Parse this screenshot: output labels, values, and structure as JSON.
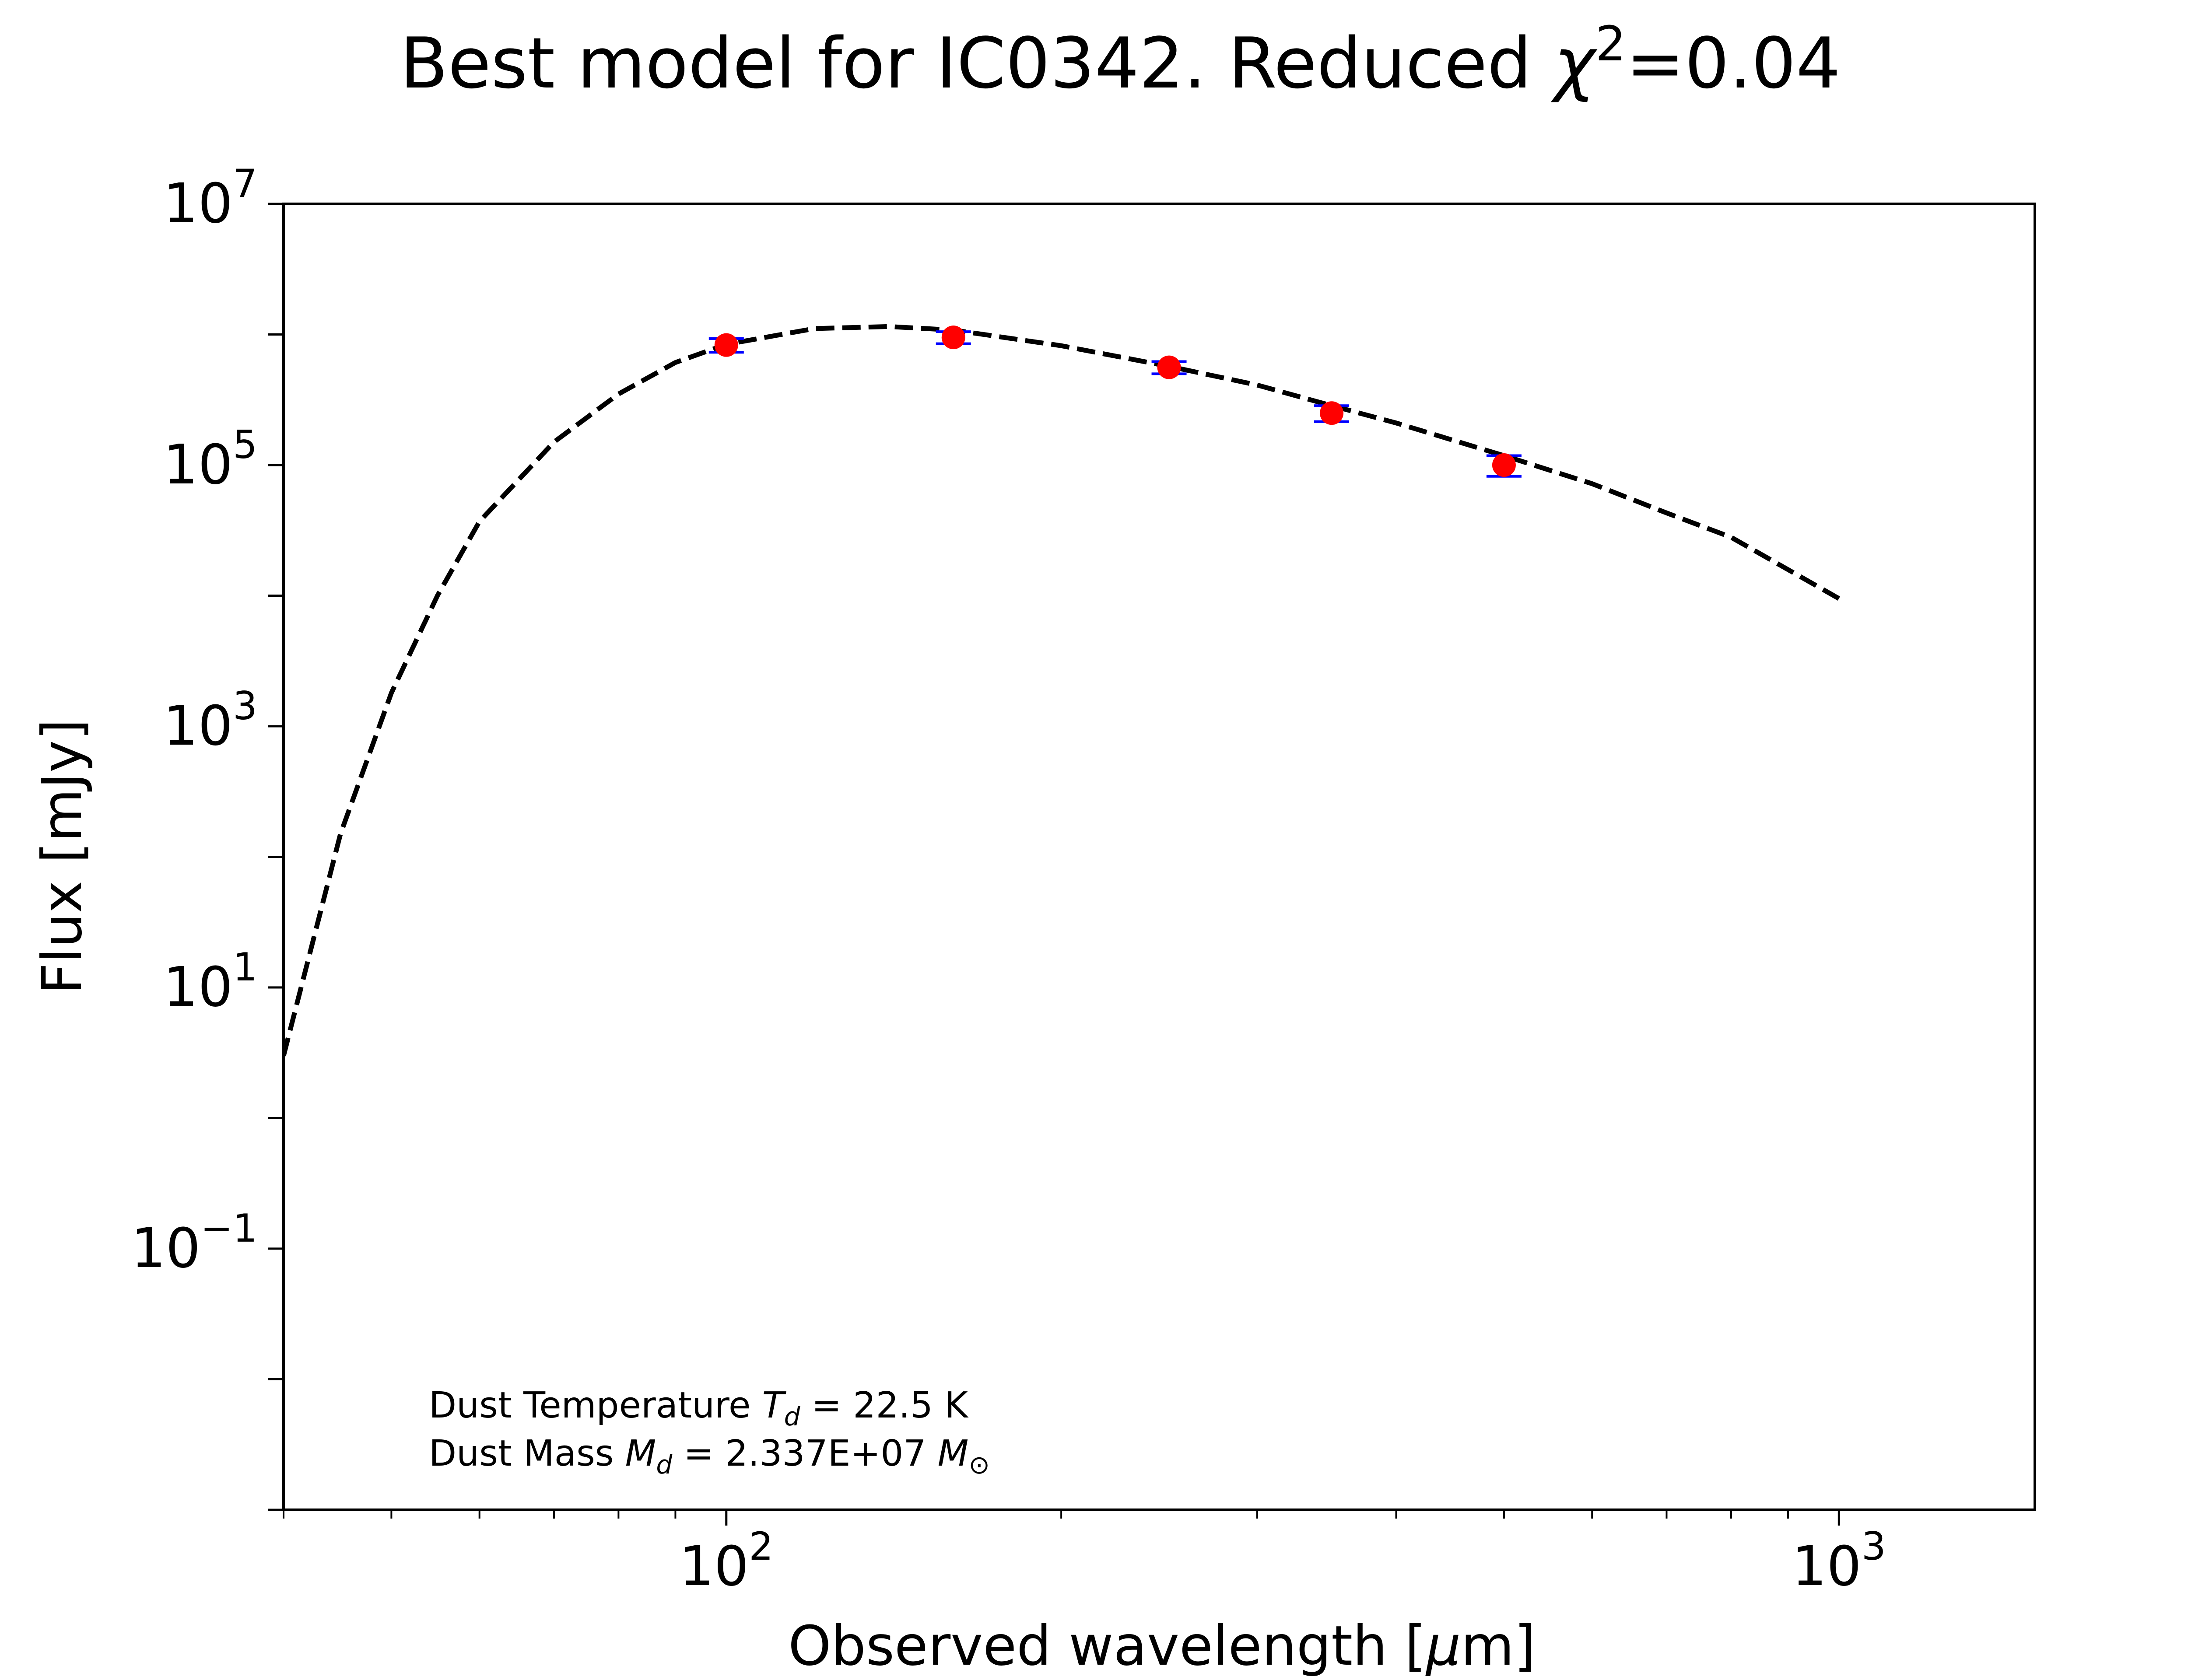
{
  "chart_data": {
    "type": "line",
    "title": "Best model for IC0342. Reduced χ²=0.04",
    "title_parts": {
      "main": "Best model for IC0342. Reduced ",
      "chi": "χ",
      "sup": "2",
      "value": "=0.04"
    },
    "xlabel": "Observed wavelength [μm]",
    "xlabel_parts": {
      "pre": "Observed wavelength [",
      "mu": "μ",
      "post": "m]"
    },
    "ylabel": "Flux [mJy]",
    "x_scale": "log",
    "y_scale": "log",
    "xlim": [
      40,
      1500
    ],
    "ylim": [
      0.001,
      10000000
    ],
    "x_ticks": [
      {
        "value": 100,
        "base": "10",
        "exp": "2"
      },
      {
        "value": 1000,
        "base": "10",
        "exp": "3"
      }
    ],
    "y_ticks": [
      {
        "value": 0.1,
        "base": "10",
        "exp": "−1"
      },
      {
        "value": 10,
        "base": "10",
        "exp": "1"
      },
      {
        "value": 1000,
        "base": "10",
        "exp": "3"
      },
      {
        "value": 100000,
        "base": "10",
        "exp": "5"
      },
      {
        "value": 10000000,
        "base": "10",
        "exp": "7"
      }
    ],
    "model": {
      "style": "dashed",
      "color": "#000000",
      "x": [
        40,
        45,
        50,
        55,
        60,
        70,
        80,
        90,
        100,
        120,
        140,
        160,
        200,
        250,
        300,
        350,
        400,
        500,
        600,
        700,
        800,
        1000
      ],
      "y": [
        3,
        150,
        1800,
        10000,
        37000,
        150000,
        350000,
        610000,
        840000,
        1110000,
        1150000,
        1080000,
        820000,
        570000,
        410000,
        285000,
        210000,
        118000,
        72000,
        43000,
        28000,
        9500
      ]
    },
    "observations": {
      "marker_color": "#ff0000",
      "errorbar_color": "#0000ff",
      "x": [
        100,
        160,
        250,
        350,
        500
      ],
      "y": [
        830000,
        950000,
        560000,
        250000,
        100000
      ],
      "err_low": [
        100000,
        100000,
        60000,
        35000,
        18000
      ],
      "err_high": [
        100000,
        100000,
        60000,
        35000,
        18000
      ]
    },
    "annotation": {
      "line1": {
        "pre": "Dust Temperature ",
        "sym": "T",
        "sub": "d",
        "post": " = 22.5 K"
      },
      "line2": {
        "pre": "Dust Mass ",
        "sym": "M",
        "sub": "d",
        "mid": " = 2.337E+07 ",
        "sym2": "M",
        "sub2": "⊙"
      }
    }
  }
}
